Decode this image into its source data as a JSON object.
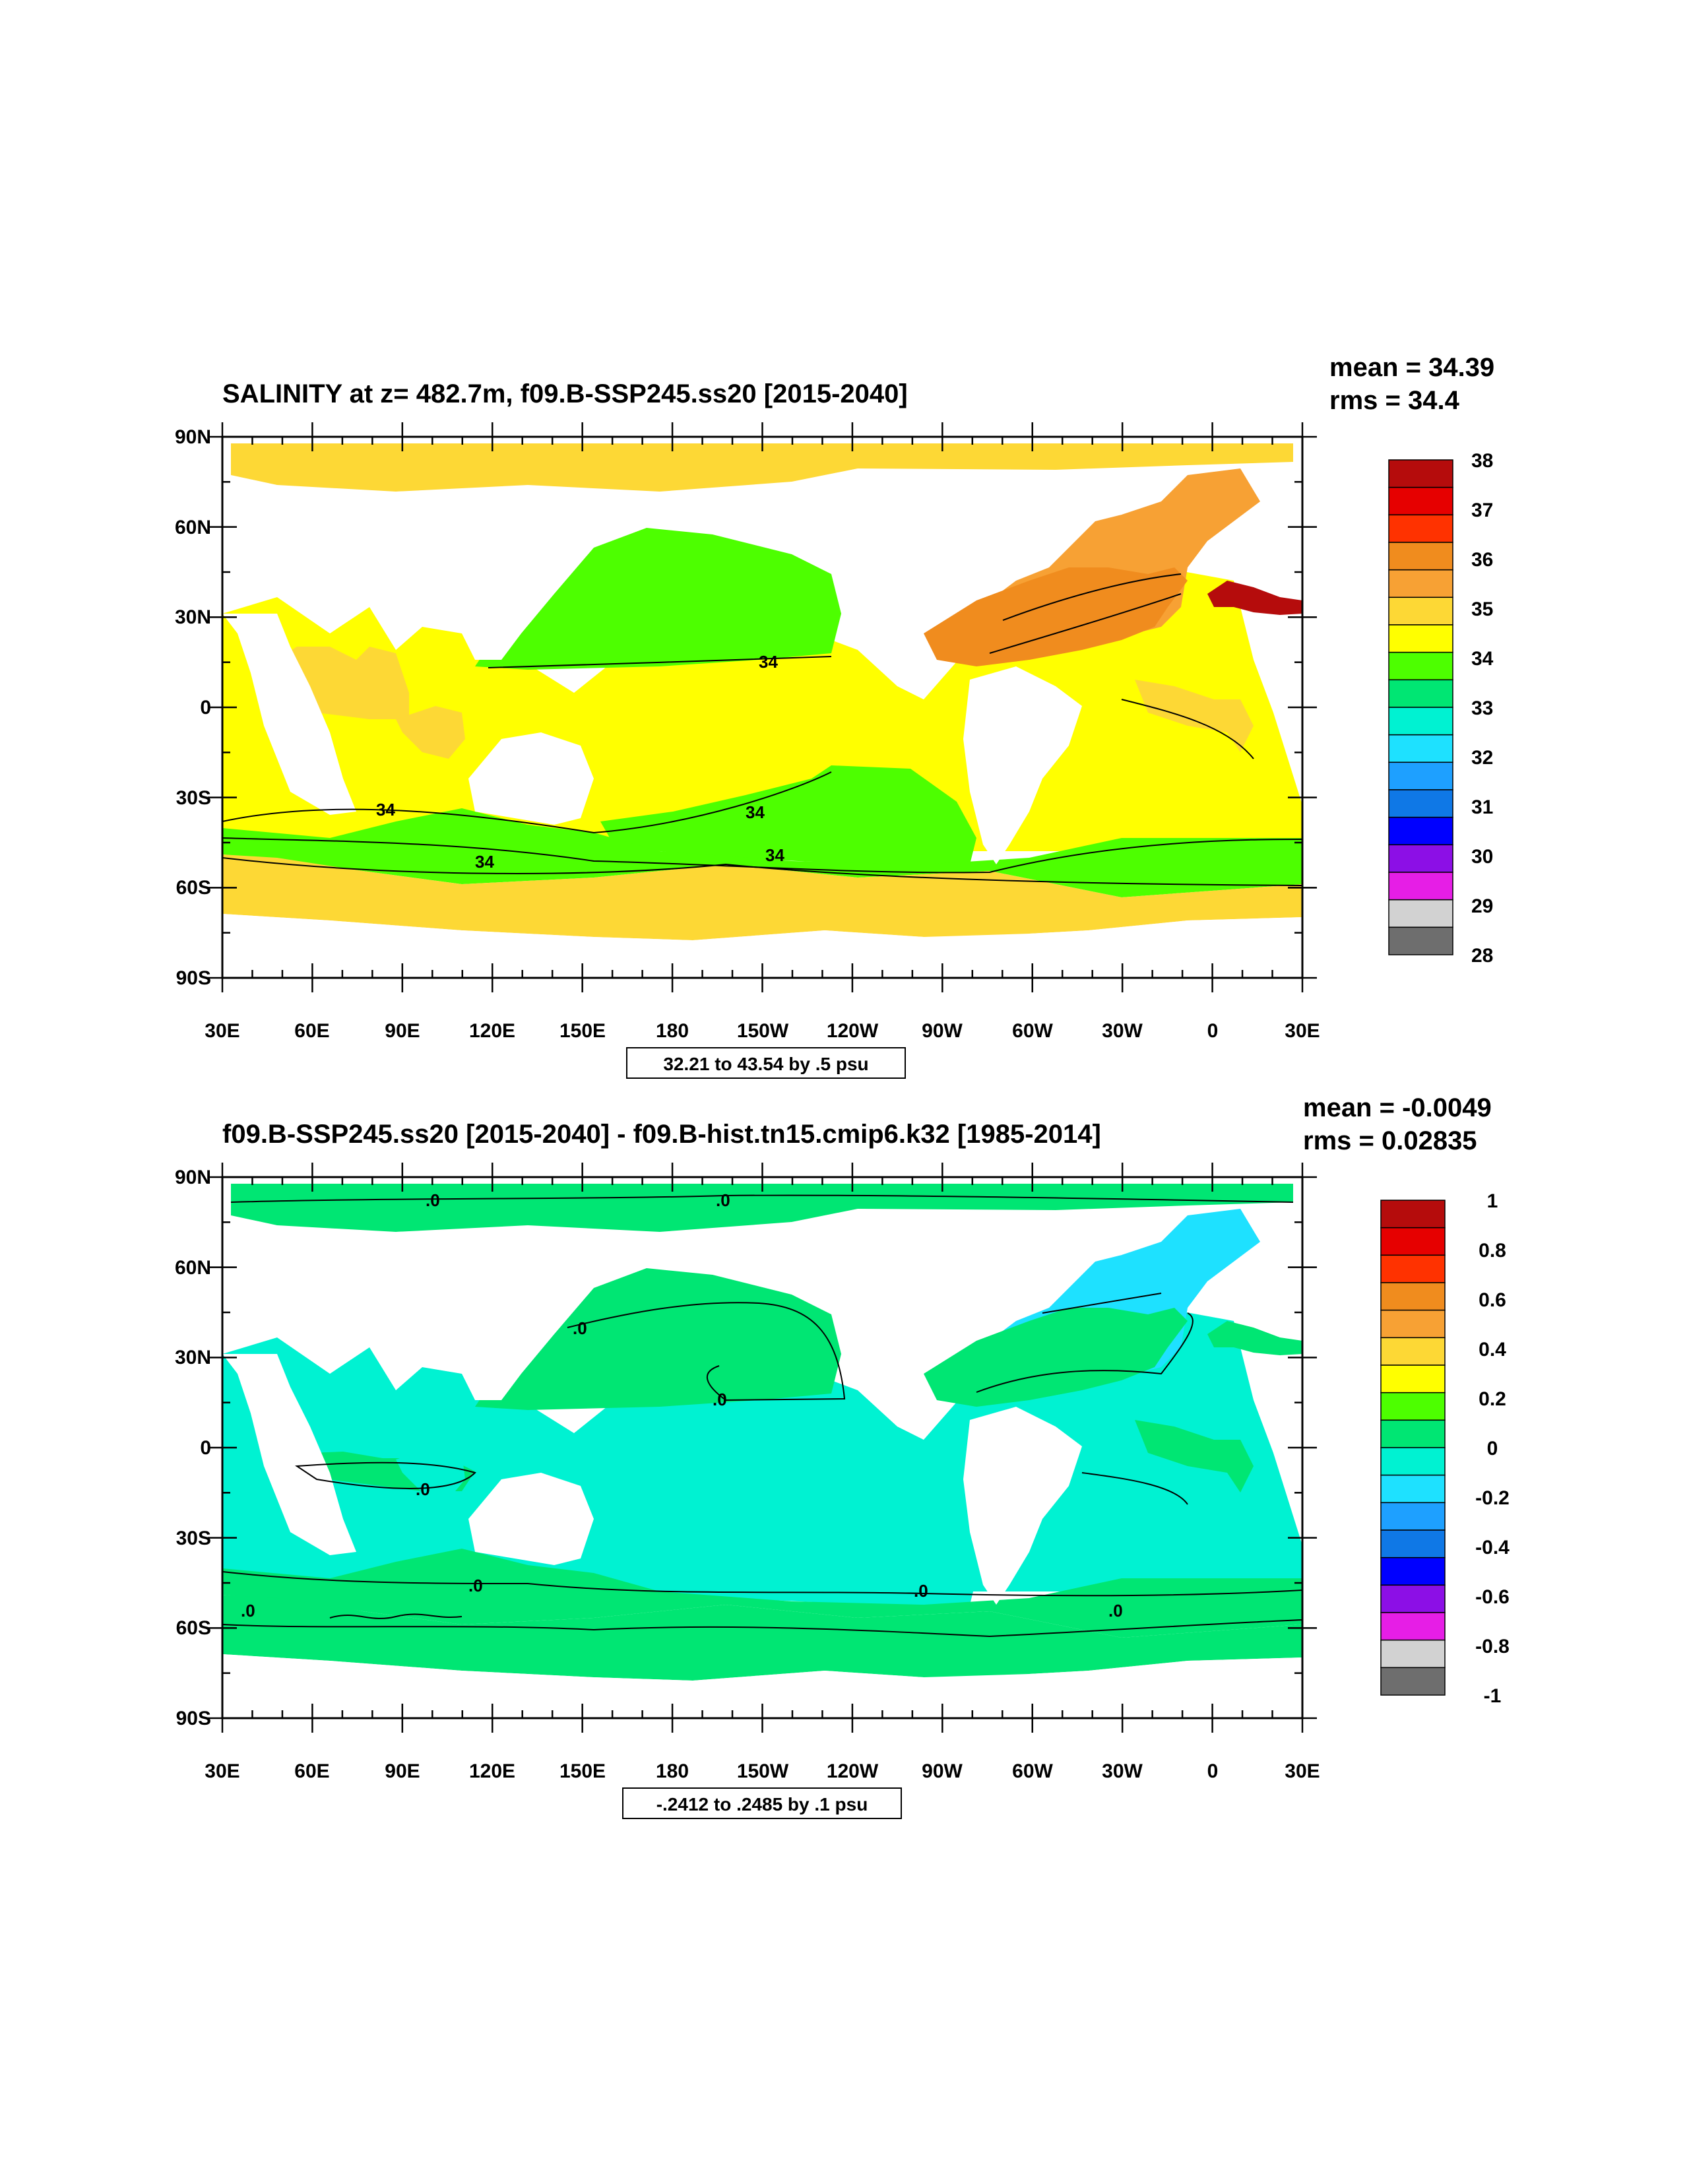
{
  "panels": [
    {
      "title": "SALINITY at z= 482.7m, f09.B-SSP245.ss20 [2015-2040]",
      "stats": [
        "mean = 34.39",
        "rms = 34.4"
      ],
      "range_label": "32.21 to 43.54 by .5 psu",
      "lat_ticks": [
        "90N",
        "60N",
        "30N",
        "0",
        "30S",
        "60S",
        "90S"
      ],
      "lon_ticks": [
        "30E",
        "60E",
        "90E",
        "120E",
        "150E",
        "180",
        "150W",
        "120W",
        "90W",
        "60W",
        "30W",
        "0",
        "30E"
      ],
      "colorbar_labels": [
        "38",
        "37",
        "36",
        "35",
        "34",
        "33",
        "32",
        "31",
        "30",
        "29",
        "28"
      ],
      "colorbar_colors": [
        "#b50c0c",
        "#e60000",
        "#ff3200",
        "#f08c1e",
        "#f7a134",
        "#fdd835",
        "#ffff00",
        "#4dff00",
        "#00e673",
        "#00f2d2",
        "#1ee1ff",
        "#1ea0ff",
        "#0f78e6",
        "#0000ff",
        "#8c0fe6",
        "#e61ee6",
        "#d2d2d2",
        "#6e6e6e"
      ],
      "contour_labels": [
        "34",
        "34",
        "34",
        "34",
        "34"
      ],
      "fill": {
        "ocean_base": "#ffff00",
        "north_polar": "#fdd835",
        "southern_band": "#4dff00",
        "southern_rim": "#fdd835",
        "north_pacific": "#4dff00",
        "south_pacific": "#4dff00",
        "north_atlantic_subpolar": "#f7a134",
        "north_atlantic_subtropical": "#f08c1e",
        "mediterranean": "#b50c0c",
        "east_atlantic": "#fdd835",
        "arabian_sea": "#fdd835",
        "west_australia": "#fdd835"
      }
    },
    {
      "title": "f09.B-SSP245.ss20 [2015-2040] - f09.B-hist.tn15.cmip6.k32 [1985-2014]",
      "stats": [
        "mean = -0.0049",
        "rms = 0.02835"
      ],
      "range_label": "-.2412 to .2485 by .1 psu",
      "lat_ticks": [
        "90N",
        "60N",
        "30N",
        "0",
        "30S",
        "60S",
        "90S"
      ],
      "lon_ticks": [
        "30E",
        "60E",
        "90E",
        "120E",
        "150E",
        "180",
        "150W",
        "120W",
        "90W",
        "60W",
        "30W",
        "0",
        "30E"
      ],
      "colorbar_labels": [
        "1",
        "0.8",
        "0.6",
        "0.4",
        "0.2",
        "0",
        "-0.2",
        "-0.4",
        "-0.6",
        "-0.8",
        "-1"
      ],
      "colorbar_colors": [
        "#b50c0c",
        "#e60000",
        "#ff3200",
        "#f08c1e",
        "#f7a134",
        "#fdd835",
        "#ffff00",
        "#4dff00",
        "#00e673",
        "#00f2d2",
        "#1ee1ff",
        "#1ea0ff",
        "#0f78e6",
        "#0000ff",
        "#8c0fe6",
        "#e61ee6",
        "#d2d2d2",
        "#6e6e6e"
      ],
      "contour_labels": [
        ".0",
        ".0",
        ".0",
        ".0",
        ".0",
        ".0",
        ".0",
        ".0",
        ".0"
      ],
      "fill": {
        "ocean_base": "#00f2d2",
        "north_polar": "#00e673",
        "southern_band": "#00e673",
        "southern_rim": "#00e673",
        "north_pacific": "#00e673",
        "south_pacific": "#00f2d2",
        "north_atlantic_subpolar": "#1ee1ff",
        "north_atlantic_subtropical": "#00e673",
        "mediterranean": "#00e673",
        "east_atlantic": "#00e673",
        "arabian_sea": "#00e673",
        "west_australia": "#00f2d2"
      }
    }
  ]
}
